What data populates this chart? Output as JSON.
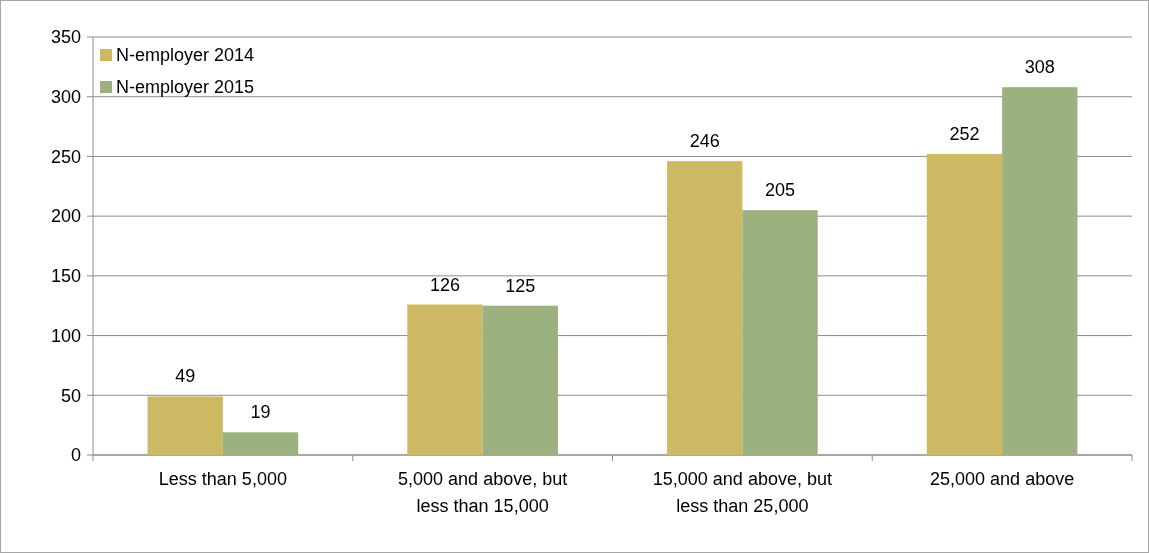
{
  "chart_data": {
    "type": "bar",
    "categories": [
      "Less than 5,000",
      "5,000 and above, but less than 15,000",
      "15,000 and above, but less than 25,000",
      "25,000 and above"
    ],
    "series": [
      {
        "name": "N-employer 2014",
        "color": "#cdb864",
        "values": [
          49,
          126,
          246,
          252
        ]
      },
      {
        "name": "N-employer 2015",
        "color": "#9bb17f",
        "values": [
          19,
          125,
          205,
          308
        ]
      }
    ],
    "ylim": [
      0,
      350
    ],
    "yticks": [
      0,
      50,
      100,
      150,
      200,
      250,
      300,
      350
    ],
    "grid": "y",
    "legend": "top left",
    "data_labels": true
  }
}
